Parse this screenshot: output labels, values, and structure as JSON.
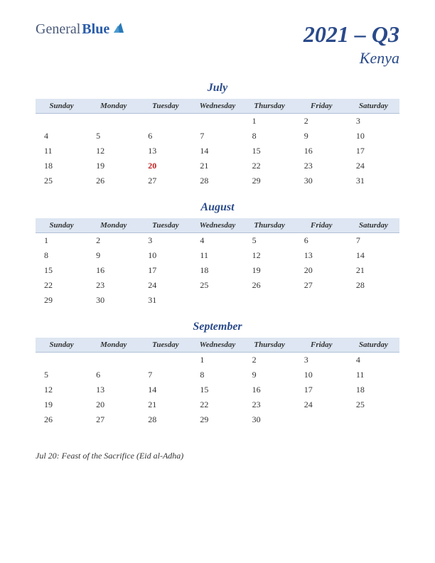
{
  "logo": {
    "text_general": "General",
    "text_blue": "Blue",
    "triangle_color": "#2a7ab8"
  },
  "title": {
    "main": "2021 – Q3",
    "sub": "Kenya"
  },
  "colors": {
    "header_bg": "#dde6f2",
    "header_border": "#b0c0d8",
    "title_color": "#2a4a8a",
    "text_color": "#333333",
    "holiday_color": "#c02020"
  },
  "day_headers": [
    "Sunday",
    "Monday",
    "Tuesday",
    "Wednesday",
    "Thursday",
    "Friday",
    "Saturday"
  ],
  "months": [
    {
      "name": "July",
      "weeks": [
        [
          "",
          "",
          "",
          "",
          "1",
          "2",
          "3"
        ],
        [
          "4",
          "5",
          "6",
          "7",
          "8",
          "9",
          "10"
        ],
        [
          "11",
          "12",
          "13",
          "14",
          "15",
          "16",
          "17"
        ],
        [
          "18",
          "19",
          "20",
          "21",
          "22",
          "23",
          "24"
        ],
        [
          "25",
          "26",
          "27",
          "28",
          "29",
          "30",
          "31"
        ]
      ],
      "holidays": [
        "20"
      ]
    },
    {
      "name": "August",
      "weeks": [
        [
          "1",
          "2",
          "3",
          "4",
          "5",
          "6",
          "7"
        ],
        [
          "8",
          "9",
          "10",
          "11",
          "12",
          "13",
          "14"
        ],
        [
          "15",
          "16",
          "17",
          "18",
          "19",
          "20",
          "21"
        ],
        [
          "22",
          "23",
          "24",
          "25",
          "26",
          "27",
          "28"
        ],
        [
          "29",
          "30",
          "31",
          "",
          "",
          "",
          ""
        ]
      ],
      "holidays": []
    },
    {
      "name": "September",
      "weeks": [
        [
          "",
          "",
          "",
          "1",
          "2",
          "3",
          "4"
        ],
        [
          "5",
          "6",
          "7",
          "8",
          "9",
          "10",
          "11"
        ],
        [
          "12",
          "13",
          "14",
          "15",
          "16",
          "17",
          "18"
        ],
        [
          "19",
          "20",
          "21",
          "22",
          "23",
          "24",
          "25"
        ],
        [
          "26",
          "27",
          "28",
          "29",
          "30",
          "",
          ""
        ]
      ],
      "holidays": []
    }
  ],
  "notes": [
    "Jul 20: Feast of the Sacrifice (Eid al-Adha)"
  ]
}
